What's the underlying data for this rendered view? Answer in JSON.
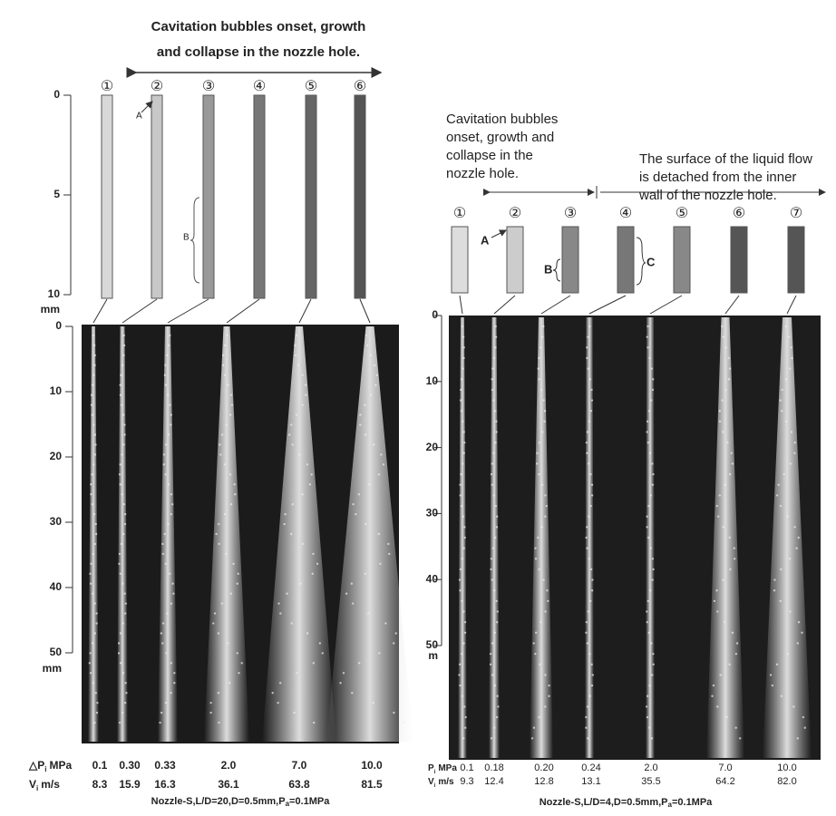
{
  "left_figure": {
    "title_lines": [
      "Cavitation bubbles onset, growth",
      "and collapse in the nozzle hole."
    ],
    "hole_numbers": [
      "①",
      "②",
      "③",
      "④",
      "⑤",
      "⑥"
    ],
    "markers": [
      "A",
      "B"
    ],
    "top_scale": {
      "ticks": [
        0,
        5,
        10
      ],
      "unit": "mm"
    },
    "spray_scale": {
      "ticks": [
        0,
        10,
        20,
        30,
        40,
        50
      ],
      "unit": "mm"
    },
    "pressure_row": {
      "symbol": "△P",
      "sub": "i",
      "unit": "MPa",
      "values": [
        "0.1",
        "0.30",
        "0.33",
        "2.0",
        "7.0",
        "10.0"
      ]
    },
    "velocity_row": {
      "symbol": "V",
      "sub": "i",
      "unit": "m/s",
      "values": [
        "8.3",
        "15.9",
        "16.3",
        "36.1",
        "63.8",
        "81.5"
      ]
    },
    "caption": {
      "main": "Nozzle-S,L/D=20,D=0.5mm,P",
      "sub": "a",
      "rest": "=0.1MPa"
    }
  },
  "right_figure": {
    "header_left_lines": [
      "Cavitation bubbles",
      "onset, growth and",
      "collapse in the",
      "nozzle hole."
    ],
    "header_right_lines": [
      "The surface of the liquid flow",
      "is detached from the inner",
      "wall of the nozzle hole."
    ],
    "hole_numbers": [
      "①",
      "②",
      "③",
      "④",
      "⑤",
      "⑥",
      "⑦"
    ],
    "markers": [
      "A",
      "B",
      "C"
    ],
    "spray_scale": {
      "ticks": [
        0,
        10,
        20,
        30,
        40,
        50
      ],
      "unit": "m"
    },
    "pressure_row": {
      "symbol": "P",
      "sub": "i",
      "unit": "MPa",
      "values": [
        "0.1",
        "0.18",
        "0.20",
        "0.24",
        "2.0",
        "7.0",
        "10.0"
      ]
    },
    "velocity_row": {
      "symbol": "V",
      "sub": "i",
      "unit": "m/s",
      "values": [
        "9.3",
        "12.4",
        "12.8",
        "13.1",
        "35.5",
        "64.2",
        "82.0"
      ]
    },
    "caption": {
      "main": "Nozzle-S,L/D=4,D=0.5mm,P",
      "sub": "a",
      "rest": "=0.1MPa"
    }
  }
}
